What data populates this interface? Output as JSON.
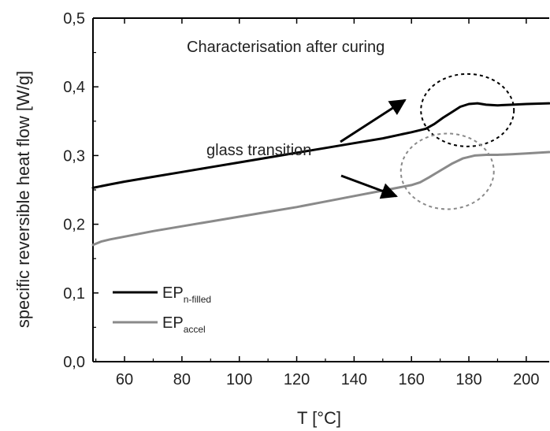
{
  "chart_data": {
    "type": "line",
    "title": "",
    "xlabel": "T [°C]",
    "ylabel": "specific reversible heat flow [W/g]",
    "xlim": [
      49,
      208
    ],
    "ylim": [
      0.0,
      0.5
    ],
    "x_ticks": [
      60,
      80,
      100,
      120,
      140,
      160,
      180,
      200
    ],
    "x_tick_labels": [
      "60",
      "80",
      "100",
      "120",
      "140",
      "160",
      "180",
      "200"
    ],
    "y_ticks": [
      0.0,
      0.1,
      0.2,
      0.3,
      0.4,
      0.5
    ],
    "y_tick_labels": [
      "0,0",
      "0,1",
      "0,2",
      "0,3",
      "0,4",
      "0,5"
    ],
    "grid": false,
    "legend_position": "bottom-left",
    "series": [
      {
        "name": "EP",
        "subscript": "n-filled",
        "color": "#000000",
        "x": [
          49,
          55,
          60,
          70,
          80,
          90,
          100,
          110,
          120,
          130,
          140,
          150,
          160,
          165,
          168,
          171,
          174,
          177,
          180,
          183,
          186,
          190,
          195,
          200,
          208
        ],
        "y": [
          0.253,
          0.258,
          0.262,
          0.269,
          0.276,
          0.283,
          0.29,
          0.297,
          0.304,
          0.311,
          0.318,
          0.325,
          0.334,
          0.339,
          0.346,
          0.355,
          0.363,
          0.371,
          0.375,
          0.376,
          0.374,
          0.373,
          0.374,
          0.375,
          0.376
        ]
      },
      {
        "name": "EP",
        "subscript": "accel",
        "color": "#8a8a8a",
        "x": [
          49,
          52,
          55,
          60,
          70,
          80,
          90,
          100,
          110,
          120,
          130,
          140,
          150,
          160,
          163,
          166,
          170,
          174,
          178,
          182,
          186,
          190,
          195,
          200,
          208
        ],
        "y": [
          0.17,
          0.175,
          0.178,
          0.182,
          0.19,
          0.197,
          0.204,
          0.211,
          0.218,
          0.225,
          0.233,
          0.241,
          0.249,
          0.257,
          0.261,
          0.268,
          0.278,
          0.288,
          0.296,
          0.3,
          0.301,
          0.301,
          0.302,
          0.303,
          0.305
        ]
      }
    ],
    "annotations": {
      "title_text": "Characterisation after curing",
      "glass_transition": "glass transition"
    }
  },
  "colors": {
    "axis": "#000000",
    "series_black": "#000000",
    "series_gray": "#8a8a8a",
    "circle_black": "#000000",
    "circle_gray": "#8a8a8a"
  }
}
